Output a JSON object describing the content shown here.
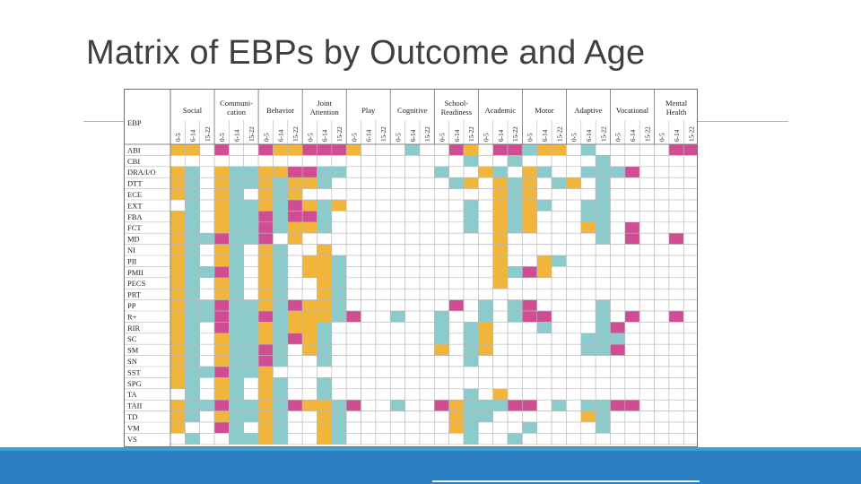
{
  "slide": {
    "title": "Matrix of EBPs by Outcome and Age"
  },
  "colors": {
    "age_0_5": "#f2b53c",
    "age_6_14": "#8ccbcb",
    "age_15_22": "#d14d93",
    "grid": "#b8b8b8",
    "border": "#6f6f6f",
    "bottom_bar": "#2b7fc3"
  },
  "matrix": {
    "ebp_label": "EBP",
    "ages": [
      "0-5",
      "6-14",
      "15-22"
    ],
    "outcomes": [
      {
        "label": [
          "Social"
        ]
      },
      {
        "label": [
          "Communi-",
          "cation"
        ]
      },
      {
        "label": [
          "Behavior"
        ]
      },
      {
        "label": [
          "Joint",
          "Attention"
        ]
      },
      {
        "label": [
          "Play"
        ]
      },
      {
        "label": [
          "Cognitive"
        ]
      },
      {
        "label": [
          "School-",
          "Readiness"
        ]
      },
      {
        "label": [
          "Academic"
        ]
      },
      {
        "label": [
          "Motor"
        ]
      },
      {
        "label": [
          "Adaptive"
        ]
      },
      {
        "label": [
          "Vocational"
        ]
      },
      {
        "label": [
          "Mental",
          "Health"
        ]
      }
    ],
    "rows": [
      {
        "ebp": "ABI",
        "cells": "1103003113331000200310332110200000330"
      },
      {
        "ebp": "CBI",
        "cells": "0000000000000000000020020000020000000"
      },
      {
        "ebp": "DRA/I/O",
        "cells": "1201221133220000002001201200222300000"
      },
      {
        "ebp": "DTT",
        "cells": "1201221211200000000210121021020000000"
      },
      {
        "ebp": "ECE",
        "cells": "1201201210000000000000121000020000000"
      },
      {
        "ebp": "EXT",
        "cells": "0201221231210000000020121200220000000"
      },
      {
        "ebp": "FBA",
        "cells": "1201223233200000000020121000220000000"
      },
      {
        "ebp": "FCT",
        "cells": "1201223211200000000020121000120300000"
      },
      {
        "ebp": "MD",
        "cells": "1223223010000000000000100000020300300"
      },
      {
        "ebp": "NI",
        "cells": "1201201200100000000000100000000000000"
      },
      {
        "ebp": "PII",
        "cells": "1201201201120000000000100120000000000"
      },
      {
        "ebp": "PMII",
        "cells": "1223201201120000000000123100000000000"
      },
      {
        "ebp": "PECS",
        "cells": "1201201200120000000000100000000000000"
      },
      {
        "ebp": "PRT",
        "cells": "1201201200120000000000000000000000000"
      },
      {
        "ebp": "PP",
        "cells": "1223221231120000000302023000020000000"
      },
      {
        "ebp": "R+",
        "cells": "1223223211123002002002023300020300300"
      },
      {
        "ebp": "RIR",
        "cells": "1203221211200000002021000200023000000"
      },
      {
        "ebp": "SC",
        "cells": "1201221231200000002021000000222000000"
      },
      {
        "ebp": "SM",
        "cells": "1201223201200000001021000000223000000"
      },
      {
        "ebp": "SN",
        "cells": "1201223200200000000020000000000000000"
      },
      {
        "ebp": "SST",
        "cells": "1223221000000000000000000000000000000"
      },
      {
        "ebp": "SPG",
        "cells": "1201201200200000000000000000000000000"
      },
      {
        "ebp": "TA",
        "cells": "0201201200200000000020100000000000000"
      },
      {
        "ebp": "TAII",
        "cells": "1223221231123002003122233020223300000"
      },
      {
        "ebp": "TD",
        "cells": "1201221200120000000122000000120000000"
      },
      {
        "ebp": "VM",
        "cells": "1003201200120000000120002000020000000"
      },
      {
        "ebp": "VS",
        "cells": "0200221200120000000020020000000000000"
      }
    ]
  }
}
